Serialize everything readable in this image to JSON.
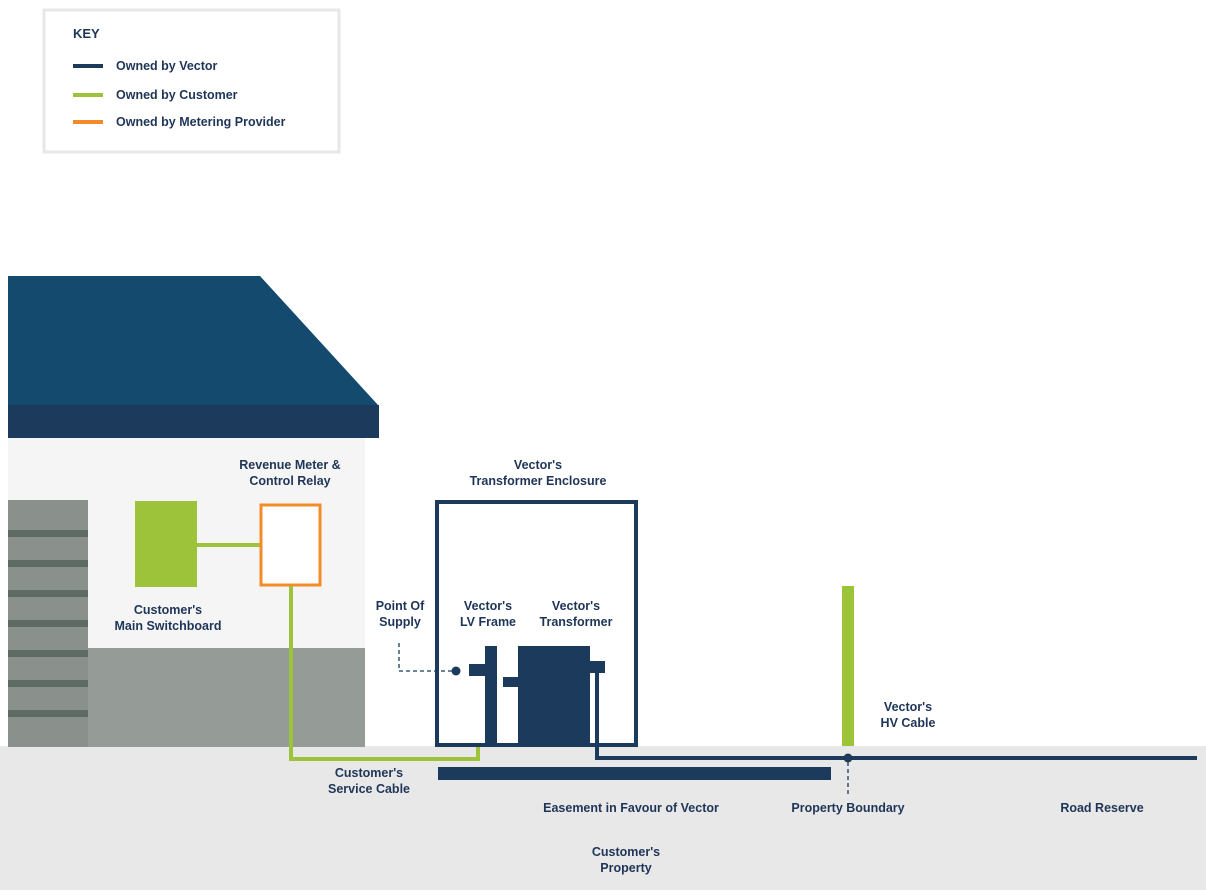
{
  "key": {
    "title": "KEY",
    "items": [
      {
        "label": "Owned by Vector",
        "color": "#1b3a5c"
      },
      {
        "label": "Owned by Customer",
        "color": "#9dc33b"
      },
      {
        "label": "Owned by Metering Provider",
        "color": "#f28c28"
      }
    ]
  },
  "labels": {
    "revenue_meter": [
      "Revenue Meter &",
      "Control Relay"
    ],
    "transformer_enclosure": [
      "Vector's",
      "Transformer Enclosure"
    ],
    "point_of_supply": [
      "Point Of",
      "Supply"
    ],
    "lv_frame": [
      "Vector's",
      "LV Frame"
    ],
    "transformer": [
      "Vector's",
      "Transformer"
    ],
    "main_switchboard": [
      "Customer's",
      "Main Switchboard"
    ],
    "hv_cable": [
      "Vector's",
      "HV Cable"
    ],
    "service_cable": [
      "Customer's",
      "Service Cable"
    ],
    "easement": "Easement in Favour of Vector",
    "property_boundary": "Property Boundary",
    "road_reserve": "Road Reserve",
    "customer_property": [
      "Customer's",
      "Property"
    ]
  },
  "colors": {
    "vector": "#1b3a5c",
    "customer": "#9dc33b",
    "metering": "#f28c28",
    "roof": "#134a6e",
    "ground": "#e7e8e7",
    "wall": "#f4f5f4",
    "base": "#959b97",
    "brick": "#8a918c"
  }
}
